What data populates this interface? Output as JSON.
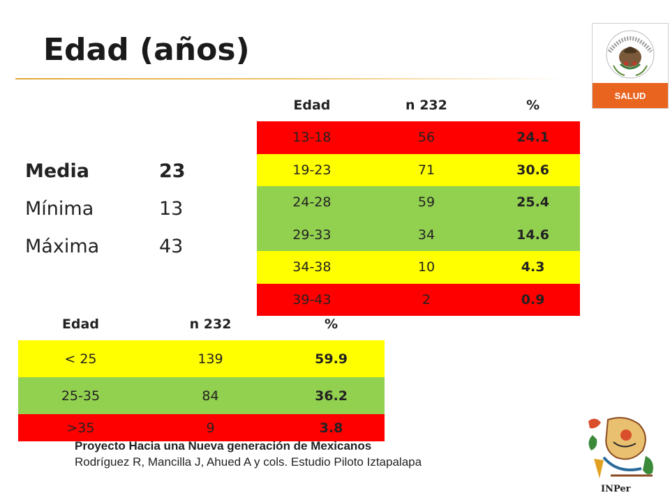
{
  "title": "Edad (años)",
  "logo": {
    "label": "SALUD",
    "ring_text": "ESTADOS UNIDOS MEXICANOS"
  },
  "stats": [
    {
      "label": "Media",
      "value": "23"
    },
    {
      "label": "Mínima",
      "value": "13"
    },
    {
      "label": "Máxima",
      "value": "43"
    }
  ],
  "table1": {
    "headers": [
      "Edad",
      "n 232",
      "%"
    ],
    "rows": [
      {
        "edad": "13-18",
        "n": "56",
        "pct": "24.1",
        "color": "#ff0000"
      },
      {
        "edad": "19-23",
        "n": "71",
        "pct": "30.6",
        "color": "#ffff00"
      },
      {
        "edad": "24-28",
        "n": "59",
        "pct": "25.4",
        "color": "#92d050"
      },
      {
        "edad": "29-33",
        "n": "34",
        "pct": "14.6",
        "color": "#92d050"
      },
      {
        "edad": "34-38",
        "n": "10",
        "pct": "4.3",
        "color": "#ffff00"
      },
      {
        "edad": "39-43",
        "n": "2",
        "pct": "0.9",
        "color": "#ff0000"
      }
    ]
  },
  "table2": {
    "headers": [
      "Edad",
      "n 232",
      "%"
    ],
    "rows": [
      {
        "edad": "< 25",
        "n": "139",
        "pct": "59.9",
        "color": "#ffff00"
      },
      {
        "edad": "25-35",
        "n": "84",
        "pct": "36.2",
        "color": "#92d050"
      },
      {
        "edad": ">35",
        "n": "9",
        "pct": "3.8",
        "color": "#ff0000"
      }
    ]
  },
  "footer": {
    "line1": "Proyecto Hacia una Nueva generación de Mexicanos",
    "line2": "Rodríguez R, Mancilla J, Ahued A y cols. Estudio Piloto Iztapalapa"
  },
  "inper_logo": {
    "label": "INPer"
  }
}
